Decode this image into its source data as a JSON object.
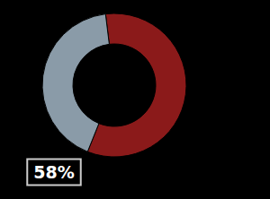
{
  "chart_data": {
    "type": "pie",
    "values": [
      58,
      42
    ],
    "colors": [
      "#8b1a1a",
      "#8a9ba8"
    ],
    "annotation": "58%"
  }
}
